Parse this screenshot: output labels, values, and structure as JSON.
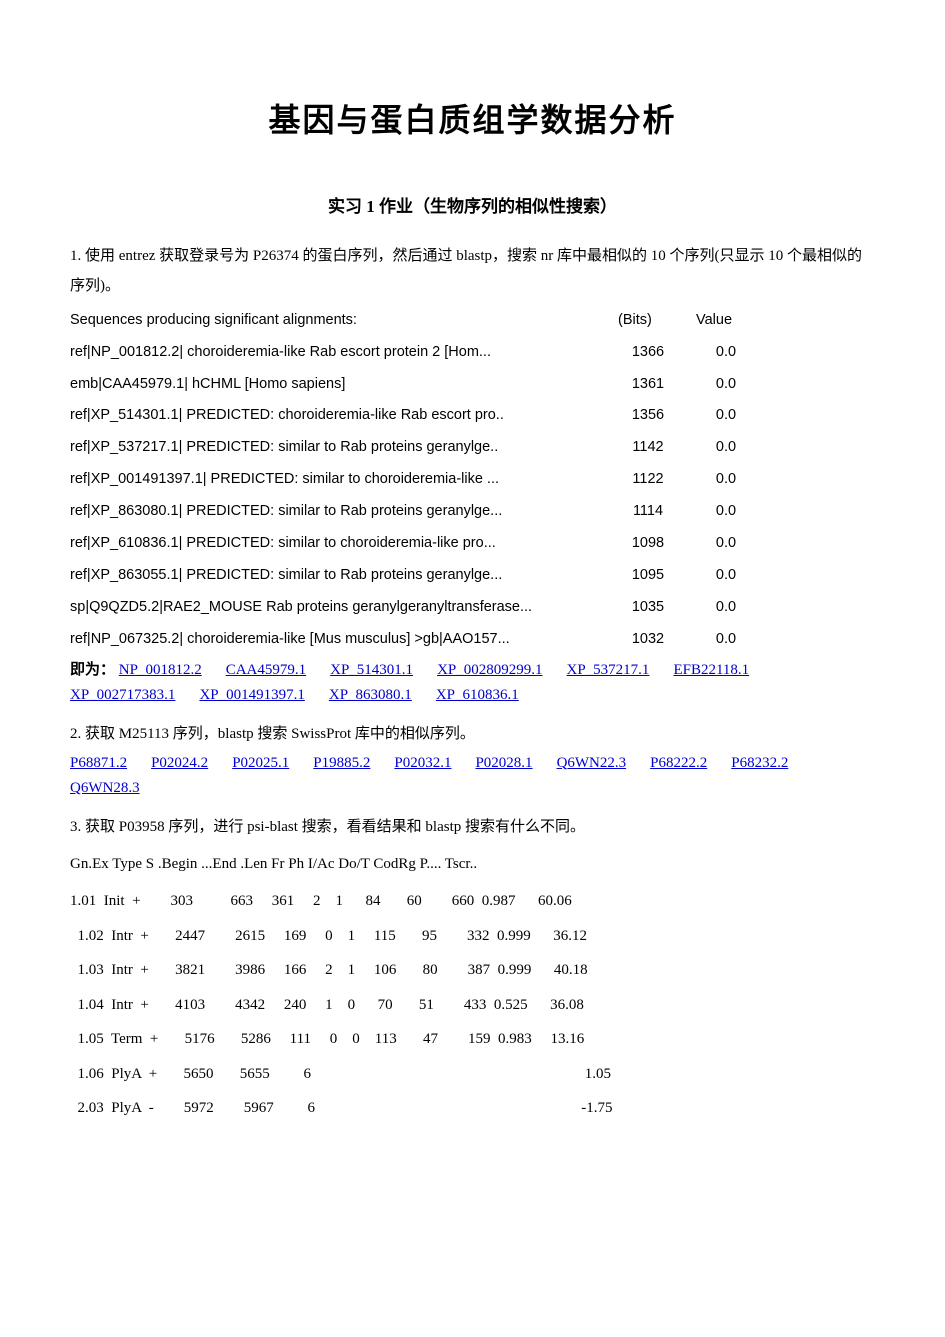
{
  "title": "基因与蛋白质组学数据分析",
  "subtitle": "实习 1 作业（生物序列的相似性搜索）",
  "q1": "1.  使用 entrez 获取登录号为 P26374 的蛋白序列，然后通过 blastp，搜索 nr 库中最相似的 10 个序列(只显示 10 个最相似的序列)。",
  "seq_header": {
    "label": "Sequences  producing  significant  alignments:",
    "bits": "(Bits)",
    "value": "Value"
  },
  "seq_rows": [
    {
      "desc": "ref|NP_001812.2|     choroideremia-like  Rab  escort  protein  2  [Hom...",
      "bits": "1366",
      "value": "0.0"
    },
    {
      "desc": "emb|CAA45979.1|     hCHML  [Homo  sapiens]",
      "bits": "1361",
      "value": "0.0"
    },
    {
      "desc": "ref|XP_514301.1|    PREDICTED:  choroideremia-like  Rab  escort  pro..",
      "bits": "1356",
      "value": "0.0"
    },
    {
      "desc": "ref|XP_537217.1|    PREDICTED:  similar  to  Rab  proteins  geranylge..",
      "bits": "1142",
      "value": "0.0"
    },
    {
      "desc": "ref|XP_001491397.1|     PREDICTED:  similar  to  choroideremia-like  ...",
      "bits": "1122",
      "value": "0.0"
    },
    {
      "desc": "ref|XP_863080.1|    PREDICTED:  similar  to  Rab  proteins  geranylge...",
      "bits": "1114",
      "value": "0.0"
    },
    {
      "desc": "ref|XP_610836.1|    PREDICTED:  similar  to  choroideremia-like  pro...",
      "bits": "1098",
      "value": "0.0"
    },
    {
      "desc": "ref|XP_863055.1|    PREDICTED:  similar  to  Rab  proteins  geranylge...",
      "bits": "1095",
      "value": "0.0"
    },
    {
      "desc": "sp|Q9QZD5.2|RAE2_MOUSE    Rab  proteins  geranylgeranyltransferase...",
      "bits": "1035",
      "value": "0.0"
    },
    {
      "desc": "ref|NP_067325.2|     choroideremia-like  [Mus  musculus]  >gb|AAO157...",
      "bits": "1032",
      "value": "0.0"
    }
  ],
  "answer1_label": "即为：",
  "answer1_links": [
    "NP_001812.2",
    "CAA45979.1",
    "XP_514301.1",
    "XP_002809299.1",
    "XP_537217.1",
    "EFB22118.1",
    "XP_002717383.1",
    "XP_001491397.1",
    "XP_863080.1",
    "XP_610836.1"
  ],
  "q2": "2.   获取 M25113 序列，blastp 搜索 SwissProt   库中的相似序列。",
  "answer2_links": [
    "P68871.2",
    "P02024.2",
    "P02025.1",
    "P19885.2",
    "P02032.1",
    "P02028.1",
    "Q6WN22.3",
    "P68222.2",
    "P68232.2",
    "Q6WN28.3"
  ],
  "q3": "3.   获取 P03958 序列，进行 psi-blast 搜索，看看结果和 blastp 搜索有什么不同。",
  "table_header": "Gn.Ex  Type  S  .Begin  ...End  .Len  Fr  Ph  I/Ac  Do/T  CodRg  P....  Tscr..",
  "table_rows": [
    "1.01  Init  +        303          663     361     2    1      84       60        660  0.987      60.06",
    "  1.02  Intr  +       2447        2615     169     0    1     115       95        332  0.999      36.12",
    "  1.03  Intr  +       3821        3986     166     2    1     106       80        387  0.999      40.18",
    "  1.04  Intr  +       4103        4342     240     1    0      70       51        433  0.525      36.08",
    "  1.05  Term  +       5176       5286     111     0    0    113       47        159  0.983     13.16",
    "  1.06  PlyA  +       5650       5655         6                                                                         1.05",
    "  2.03  PlyA  -        5972        5967         6                                                                       -1.75"
  ]
}
